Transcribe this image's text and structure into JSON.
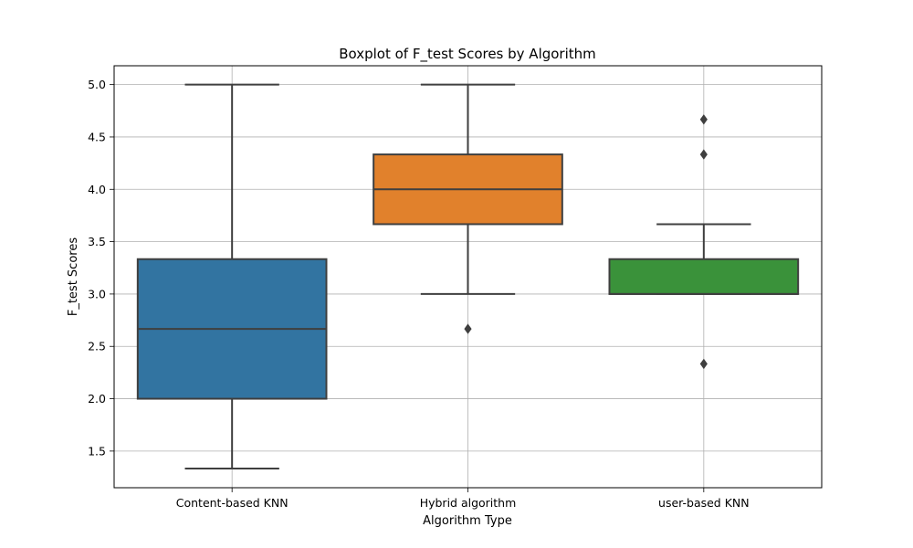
{
  "chart_data": {
    "type": "box",
    "title": "Boxplot of F_test Scores by Algorithm",
    "xlabel": "Algorithm Type",
    "ylabel": "F_test Scores",
    "ylim": [
      1.15,
      5.18
    ],
    "yticks": [
      "1.5",
      "2.0",
      "2.5",
      "3.0",
      "3.5",
      "4.0",
      "4.5",
      "5.0"
    ],
    "grid": true,
    "categories": [
      "Content-based KNN",
      "Hybrid algorithm",
      "user-based KNN"
    ],
    "boxes": [
      {
        "category": "Content-based KNN",
        "color": "#3274a1",
        "whisker_low": 1.333,
        "q1": 2.0,
        "median": 2.667,
        "q3": 3.333,
        "whisker_high": 5.0,
        "outliers": []
      },
      {
        "category": "Hybrid algorithm",
        "color": "#e1812c",
        "whisker_low": 3.0,
        "q1": 3.667,
        "median": 4.0,
        "q3": 4.333,
        "whisker_high": 5.0,
        "outliers": [
          2.667
        ]
      },
      {
        "category": "user-based KNN",
        "color": "#3a923a",
        "whisker_low": 3.0,
        "q1": 3.0,
        "median": 3.0,
        "q3": 3.333,
        "whisker_high": 3.667,
        "outliers": [
          4.667,
          4.333,
          2.333
        ]
      }
    ]
  }
}
